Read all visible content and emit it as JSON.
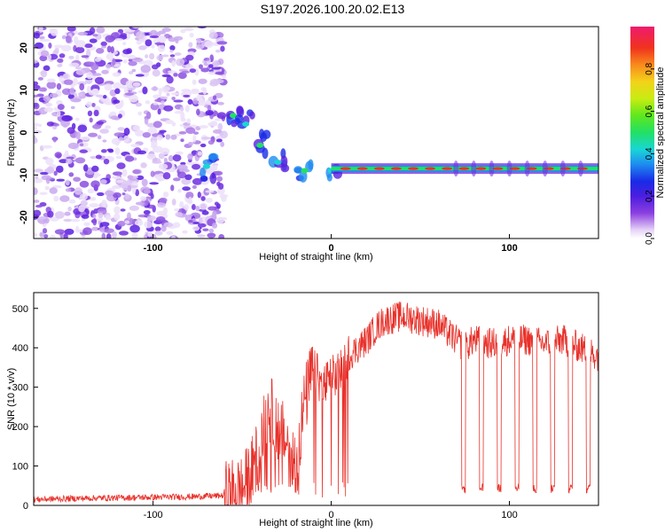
{
  "title": "S197.2026.100.20.02.E13",
  "chart_data": [
    {
      "type": "heatmap",
      "name": "spectrogram",
      "title": "S197.2026.100.20.02.E13",
      "xlabel": "Height of straight line (km)",
      "ylabel": "Frequency (Hz)",
      "xlim": [
        -167,
        150
      ],
      "ylim": [
        -25,
        25
      ],
      "xticks": [
        -100,
        0,
        100
      ],
      "yticks": [
        -20,
        -10,
        0,
        10,
        20
      ],
      "noise_region": {
        "x": [
          -167,
          -60
        ],
        "freq": [
          -25,
          25
        ]
      },
      "descending_track": [
        {
          "x": -70,
          "freq": -8
        },
        {
          "x": -55,
          "freq": 4
        },
        {
          "x": -48,
          "freq": 2
        },
        {
          "x": -40,
          "freq": -3
        },
        {
          "x": -30,
          "freq": -7
        },
        {
          "x": -15,
          "freq": -9
        },
        {
          "x": 0,
          "freq": -9
        }
      ],
      "carrier": {
        "x": [
          0,
          150
        ],
        "freq": -8.5,
        "amplitude": 1.0
      },
      "colorbar": {
        "label": "Normalized spectral amplitude",
        "range": [
          0,
          1
        ],
        "ticks": [
          "0.0",
          "0.2",
          "0.4",
          "0.6",
          "0.8"
        ],
        "ticks_values": [
          0.0,
          0.2,
          0.4,
          0.6,
          0.8
        ]
      }
    },
    {
      "type": "line",
      "name": "snr",
      "xlabel": "Height of straight line (km)",
      "ylabel": "SNR (10 * v/v)",
      "xlim": [
        -167,
        150
      ],
      "ylim": [
        0,
        540
      ],
      "xticks": [
        -100,
        0,
        100
      ],
      "yticks": [
        0,
        100,
        200,
        300,
        400,
        500
      ],
      "color": "#e8312a",
      "series": [
        {
          "name": "SNR",
          "x": [
            -167,
            -140,
            -110,
            -80,
            -60,
            -50,
            -45,
            -40,
            -35,
            -30,
            -25,
            -20,
            -15,
            -10,
            -5,
            0,
            5,
            10,
            15,
            20,
            25,
            30,
            40,
            50,
            60,
            65,
            70,
            75,
            80,
            90,
            100,
            110,
            120,
            130,
            140,
            150
          ],
          "values": [
            15,
            18,
            20,
            22,
            25,
            40,
            80,
            150,
            250,
            200,
            160,
            100,
            260,
            350,
            300,
            320,
            340,
            380,
            400,
            420,
            450,
            470,
            480,
            470,
            460,
            440,
            420,
            400,
            420,
            410,
            420,
            420,
            410,
            420,
            400,
            380
          ]
        }
      ],
      "dropouts": [
        73,
        83,
        93,
        103,
        113,
        123,
        133,
        143
      ]
    }
  ]
}
